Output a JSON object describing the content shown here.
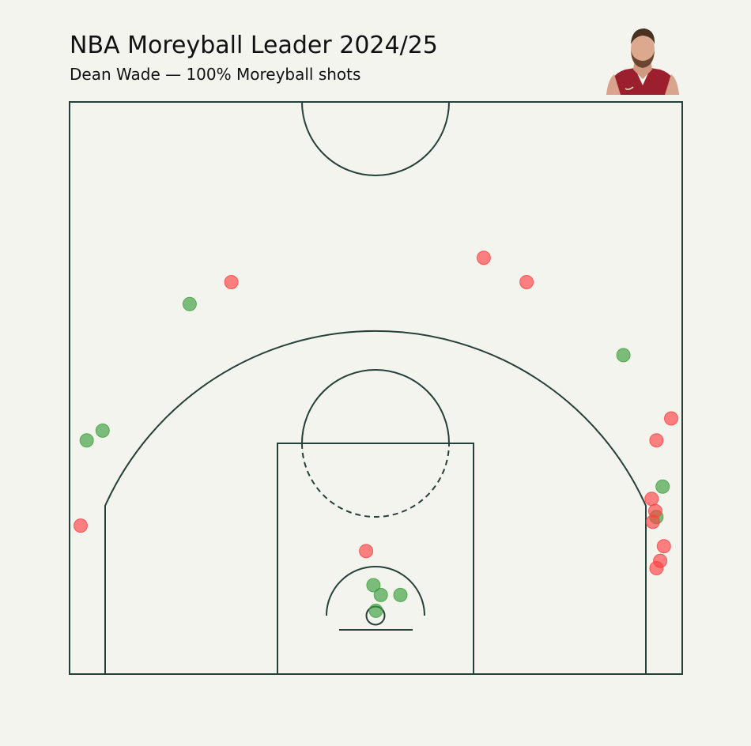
{
  "title": "NBA Moreyball Leader 2024/25",
  "subtitle": "Dean Wade — 100% Moreyball shots",
  "colors": {
    "background": "#f4f4ef",
    "court_lines": "#254038",
    "made": "#3c9e3c",
    "missed": "#ff4040",
    "jersey": "#9b1f2c"
  },
  "chart_data": {
    "type": "scatter",
    "title": "NBA Moreyball Leader 2024/25",
    "subtitle": "Dean Wade — 100% Moreyball shots",
    "grid": false,
    "legend": null,
    "xlim": [
      -250,
      250
    ],
    "ylim": [
      -52,
      418
    ],
    "series": [
      {
        "name": "",
        "color": "#3c9e3c",
        "points": [
          [
            -236,
            140
          ],
          [
            -223,
            148
          ],
          [
            -152,
            252
          ],
          [
            202,
            210
          ],
          [
            234,
            102
          ],
          [
            229,
            77
          ],
          [
            -2,
            21
          ],
          [
            4,
            13
          ],
          [
            20,
            13
          ],
          [
            0,
            0
          ]
        ]
      },
      {
        "name": "",
        "color": "#ff4040",
        "points": [
          [
            -241,
            70
          ],
          [
            -118,
            270
          ],
          [
            88,
            290
          ],
          [
            123,
            270
          ],
          [
            241,
            158
          ],
          [
            229,
            140
          ],
          [
            225,
            92
          ],
          [
            228,
            82
          ],
          [
            226,
            73
          ],
          [
            235,
            53
          ],
          [
            232,
            41
          ],
          [
            229,
            35
          ],
          [
            -8,
            49
          ]
        ]
      }
    ]
  }
}
